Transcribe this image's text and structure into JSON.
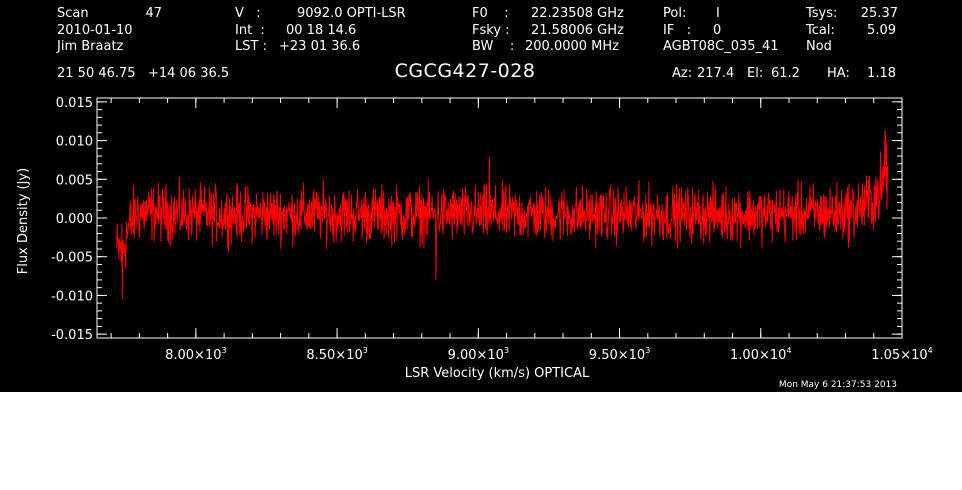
{
  "header": {
    "scan_label": "Scan",
    "scan_number": "47",
    "date": "2010-01-10",
    "observer": "Jim Braatz",
    "v_label": "V   :",
    "v_value": "9092.0 OPTI-LSR",
    "int_label": "Int  :",
    "int_value": "00 18 14.6",
    "lst_label": "LST :",
    "lst_value": "+23 01 36.6",
    "f0_label": "F0    :",
    "f0_value": "22.23508 GHz",
    "fsky_label": "Fsky :",
    "fsky_value": "21.58006 GHz",
    "bw_label": "BW    :",
    "bw_value": "200.0000 MHz",
    "pol_label": "Pol:",
    "pol_value": "I",
    "if_label": "IF   :",
    "if_value": "0",
    "project": "AGBT08C_035_41",
    "tsys_label": "Tsys:",
    "tsys_value": "25.37",
    "tcal_label": "Tcal:",
    "tcal_value": "5.09",
    "mode": "Nod",
    "coordinates": "21 50 46.75   +14 06 36.5",
    "source": "CGCG427-028",
    "az_label": "Az:",
    "az_value": "217.4",
    "el_label": "El:",
    "el_value": "61.2",
    "ha_label": "HA:",
    "ha_value": "1.18"
  },
  "timestamp": "Mon May  6 21:37:53 2013",
  "colors": {
    "background": "#000000",
    "axes": "#ffffff",
    "trace": "#ff0000"
  },
  "chart_data": {
    "type": "line",
    "title": "CGCG427-028",
    "xlabel": "LSR Velocity (km/s) OPTICAL",
    "ylabel": "Flux Density (Jy)",
    "xlim": [
      7650,
      10500
    ],
    "ylim": [
      -0.0155,
      0.0155
    ],
    "x_ticks": [
      {
        "value": 8000,
        "label": "8.00×10",
        "exp": "3"
      },
      {
        "value": 8500,
        "label": "8.50×10",
        "exp": "3"
      },
      {
        "value": 9000,
        "label": "9.00×10",
        "exp": "3"
      },
      {
        "value": 9500,
        "label": "9.50×10",
        "exp": "3"
      },
      {
        "value": 10000,
        "label": "1.00×10",
        "exp": "4"
      },
      {
        "value": 10500,
        "label": "1.05×10",
        "exp": "4"
      }
    ],
    "y_ticks": [
      {
        "value": 0.015,
        "label": "0.015"
      },
      {
        "value": 0.01,
        "label": "0.010"
      },
      {
        "value": 0.005,
        "label": "0.005"
      },
      {
        "value": 0.0,
        "label": "0.000"
      },
      {
        "value": -0.005,
        "label": "-0.005"
      },
      {
        "value": -0.01,
        "label": "-0.010"
      },
      {
        "value": -0.015,
        "label": "-0.015"
      }
    ],
    "series": [
      {
        "x_range": [
          7720,
          10450
        ],
        "envelope": [
          {
            "x": 7720,
            "low": -0.0095,
            "high": 0.001
          },
          {
            "x": 7740,
            "low": -0.01,
            "high": 0.002
          },
          {
            "x": 7760,
            "low": -0.007,
            "high": 0.004
          },
          {
            "x": 7790,
            "low": -0.004,
            "high": 0.0055
          },
          {
            "x": 8000,
            "low": -0.004,
            "high": 0.005
          },
          {
            "x": 8500,
            "low": -0.004,
            "high": 0.005
          },
          {
            "x": 9000,
            "low": -0.004,
            "high": 0.005
          },
          {
            "x": 9500,
            "low": -0.004,
            "high": 0.005
          },
          {
            "x": 10000,
            "low": -0.004,
            "high": 0.005
          },
          {
            "x": 10300,
            "low": -0.004,
            "high": 0.0055
          },
          {
            "x": 10380,
            "low": -0.0035,
            "high": 0.007
          },
          {
            "x": 10420,
            "low": -0.002,
            "high": 0.009
          },
          {
            "x": 10450,
            "low": 0.0,
            "high": 0.011
          }
        ],
        "features": [
          {
            "x": 7740,
            "y": -0.0104
          },
          {
            "x": 9040,
            "y": 0.0078
          },
          {
            "x": 8850,
            "y": -0.008
          },
          {
            "x": 10440,
            "y": 0.0112
          }
        ]
      }
    ]
  }
}
